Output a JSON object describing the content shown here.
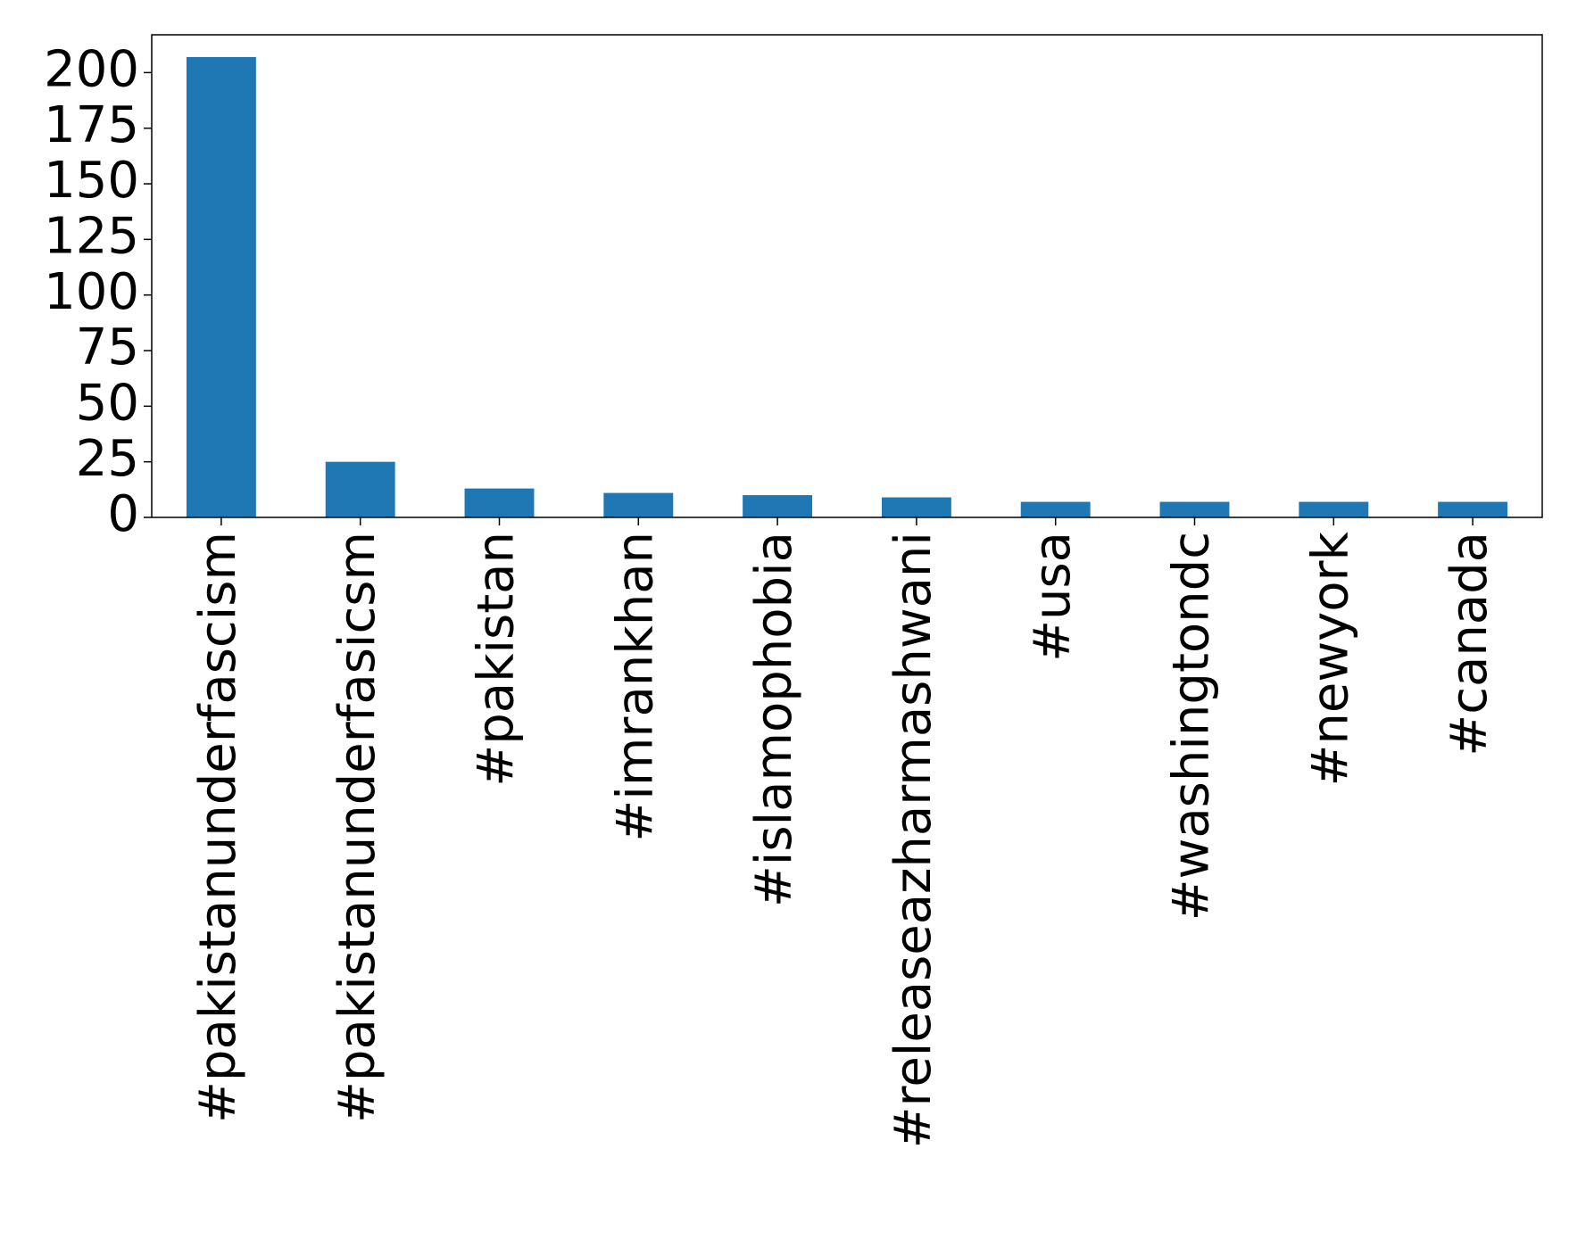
{
  "chart_data": {
    "type": "bar",
    "categories": [
      "#pakistanunderfascism",
      "#pakistanunderfasicsm",
      "#pakistan",
      "#imrankhan",
      "#islamophobia",
      "#releaseazharmashwani",
      "#usa",
      "#washingtondc",
      "#newyork",
      "#canada"
    ],
    "values": [
      207,
      25,
      13,
      11,
      10,
      9,
      7,
      7,
      7,
      7
    ],
    "color": "#1f77b4",
    "ylim": [
      0,
      217
    ],
    "yticks": [
      0,
      25,
      50,
      75,
      100,
      125,
      150,
      175,
      200
    ],
    "grid": false
  }
}
